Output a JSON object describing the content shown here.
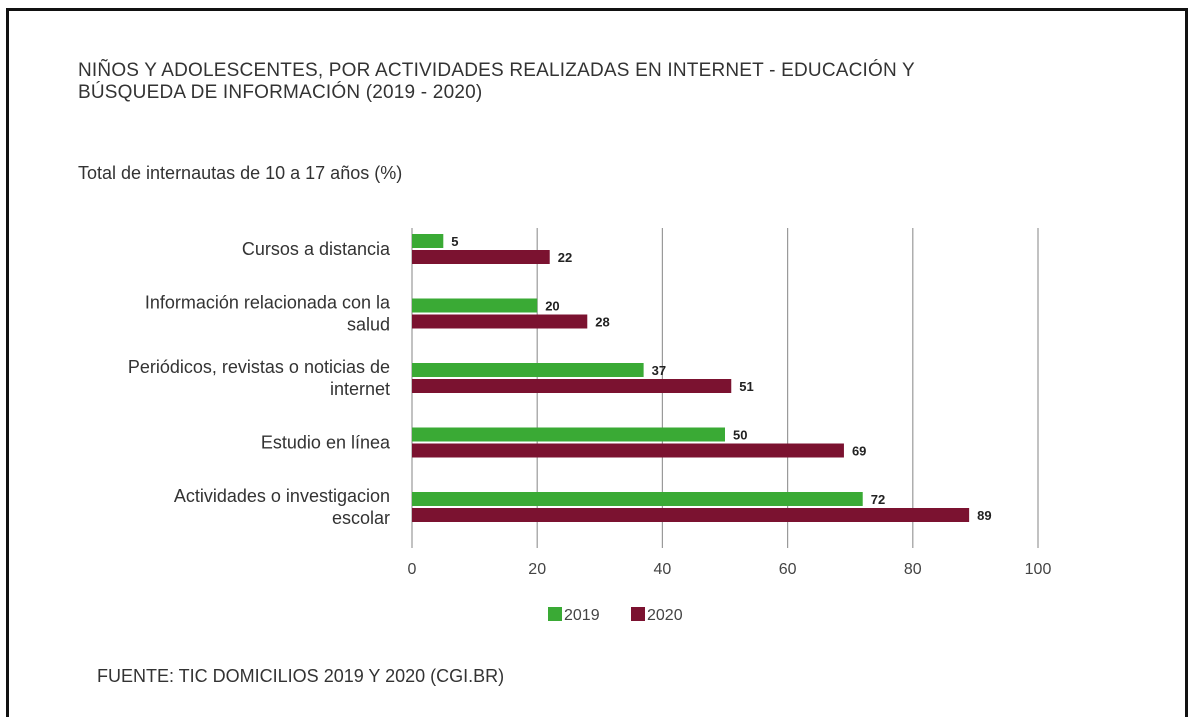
{
  "header": {
    "title_line1": "NIÑOS Y ADOLESCENTES, POR ACTIVIDADES REALIZADAS EN INTERNET - EDUCACIÓN Y",
    "title_line2": "BÚSQUEDA DE INFORMACIÓN (2019 - 2020)",
    "subtitle": "Total de internautas de 10 a 17 años (%)"
  },
  "footer": {
    "source": "FUENTE: TIC DOMICILIOS 2019 Y 2020 (CGI.BR)"
  },
  "chart_data": {
    "type": "bar",
    "orientation": "horizontal",
    "title": "NIÑOS Y ADOLESCENTES, POR ACTIVIDADES REALIZADAS EN INTERNET - EDUCACIÓN Y BÚSQUEDA DE INFORMACIÓN (2019 - 2020)",
    "subtitle": "Total de internautas de 10 a 17 años (%)",
    "categories": [
      [
        "Cursos a distancia"
      ],
      [
        "Información relacionada con la",
        "salud"
      ],
      [
        "Periódicos, revistas o noticias de",
        "internet"
      ],
      [
        "Estudio en línea"
      ],
      [
        "Actividades o investigacion",
        "escolar"
      ]
    ],
    "series": [
      {
        "name": "2019",
        "color": "#3aaa35",
        "values": [
          5,
          20,
          37,
          50,
          72
        ]
      },
      {
        "name": "2020",
        "color": "#7b1230",
        "values": [
          22,
          28,
          51,
          69,
          89
        ]
      }
    ],
    "xlim": [
      0,
      100
    ],
    "xticks": [
      "0",
      "20",
      "40",
      "60",
      "80",
      "100"
    ],
    "grid": true,
    "legend_position": "bottom"
  }
}
